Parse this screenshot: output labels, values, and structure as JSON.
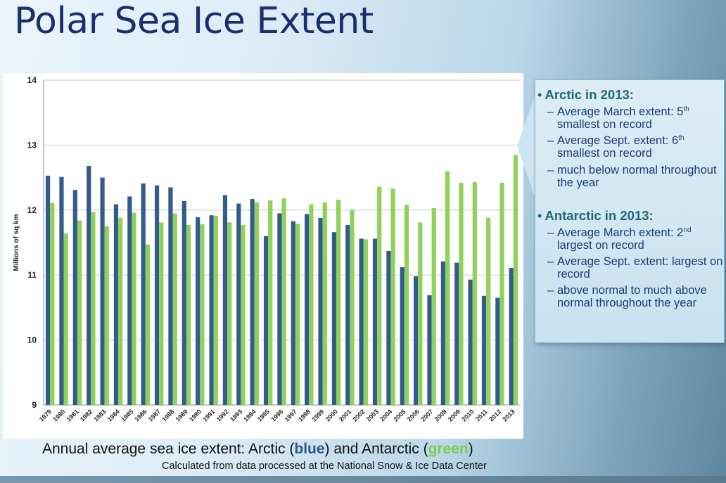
{
  "page": {
    "title": "Polar Sea Ice Extent"
  },
  "chart_data": {
    "type": "bar",
    "title": "",
    "xlabel": "",
    "ylabel": "Millions of sq km",
    "ylim": [
      9,
      14
    ],
    "yticks": [
      "9",
      "10",
      "11",
      "12",
      "13",
      "14"
    ],
    "grid": true,
    "categories": [
      "1979",
      "1980",
      "1981",
      "1982",
      "1983",
      "1984",
      "1985",
      "1986",
      "1987",
      "1988",
      "1989",
      "1990",
      "1991",
      "1992",
      "1993",
      "1994",
      "1995",
      "1996",
      "1997",
      "1998",
      "1999",
      "2000",
      "2001",
      "2002",
      "2003",
      "2004",
      "2005",
      "2006",
      "2007",
      "2008",
      "2009",
      "2010",
      "2011",
      "2012",
      "2013"
    ],
    "series": [
      {
        "name": "Arctic",
        "color": "#335b8c",
        "values": [
          12.53,
          12.51,
          12.31,
          12.68,
          12.5,
          12.09,
          12.21,
          12.41,
          12.38,
          12.35,
          12.14,
          11.89,
          11.92,
          12.23,
          12.1,
          12.17,
          11.6,
          11.95,
          11.83,
          11.94,
          11.88,
          11.66,
          11.77,
          11.56,
          11.56,
          11.37,
          11.12,
          10.98,
          10.69,
          11.21,
          11.19,
          10.93,
          10.68,
          10.65,
          11.11
        ]
      },
      {
        "name": "Antarctic",
        "color": "#8fd15a",
        "values": [
          12.11,
          11.64,
          11.84,
          11.97,
          11.75,
          11.88,
          11.96,
          11.47,
          11.81,
          11.95,
          11.77,
          11.78,
          11.91,
          11.81,
          11.77,
          12.12,
          12.15,
          12.18,
          11.79,
          12.09,
          12.12,
          12.16,
          12.0,
          11.55,
          12.36,
          12.33,
          12.08,
          11.81,
          12.03,
          12.6,
          12.42,
          12.43,
          11.88,
          12.42,
          12.85
        ]
      }
    ]
  },
  "caption": {
    "prefix": "Annual average sea ice extent: Arctic (",
    "blue_word": "blue",
    "middle": ") and Antarctic (",
    "green_word": "green",
    "suffix": ")",
    "credit": "Calculated from data processed at the National Snow & Ice Data Center"
  },
  "info": {
    "arctic": {
      "heading": "Arctic in 2013:",
      "items": [
        {
          "text": "Average March extent: 5",
          "sup": "th",
          "after": " smallest on record"
        },
        {
          "text": "Average Sept. extent: 6",
          "sup": "th",
          "after": " smallest on record"
        },
        {
          "text": "much below normal throughout the year",
          "sup": "",
          "after": ""
        }
      ]
    },
    "antarctic": {
      "heading": "Antarctic in 2013:",
      "items": [
        {
          "text": "Average March extent: 2",
          "sup": "nd",
          "after": " largest on record"
        },
        {
          "text": "Average Sept. extent: largest on record",
          "sup": "",
          "after": ""
        },
        {
          "text": "above normal to much above normal throughout the year",
          "sup": "",
          "after": ""
        }
      ]
    },
    "bullet": "•",
    "dash": "–"
  }
}
